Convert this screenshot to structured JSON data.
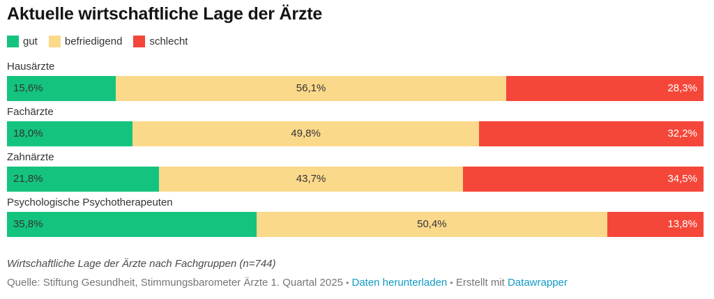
{
  "title": "Aktuelle wirtschaftliche Lage der Ärzte",
  "colors": {
    "good": "#14c47e",
    "satisfactory": "#fbd98b",
    "bad": "#f4473a",
    "link": "#0e9bc4",
    "text_dark": "#333333",
    "text_gray": "#757575"
  },
  "chart_data": {
    "type": "bar",
    "stacked": true,
    "orientation": "horizontal",
    "unit": "%",
    "value_range": [
      0,
      100
    ],
    "grid": false,
    "legend_position": "top",
    "title": "Aktuelle wirtschaftliche Lage der Ärzte",
    "categories": [
      "Hausärzte",
      "Fachärzte",
      "Zahnärzte",
      "Psychologische Psychotherapeuten"
    ],
    "series": [
      {
        "name": "gut",
        "color": "#14c47e",
        "label_color": "#333333",
        "label_align": "left",
        "values": [
          15.6,
          18.0,
          21.8,
          35.8
        ]
      },
      {
        "name": "befriedigend",
        "color": "#fbd98b",
        "label_color": "#333333",
        "label_align": "center",
        "values": [
          56.1,
          49.8,
          43.7,
          50.4
        ]
      },
      {
        "name": "schlecht",
        "color": "#f4473a",
        "label_color": "#ffffff",
        "label_align": "right",
        "values": [
          28.3,
          32.2,
          34.5,
          13.8
        ]
      }
    ],
    "value_labels": [
      [
        "15,6%",
        "56,1%",
        "28,3%"
      ],
      [
        "18,0%",
        "49,8%",
        "32,2%"
      ],
      [
        "21,8%",
        "43,7%",
        "34,5%"
      ],
      [
        "35,8%",
        "50,4%",
        "13,8%"
      ]
    ]
  },
  "footer": {
    "note": "Wirtschaftliche Lage der Ärzte nach Fachgruppen (n=744)",
    "source_text": "Quelle: Stiftung Gesundheit, Stimmungsbarometer Ärzte 1. Quartal 2025",
    "separator": "•",
    "download_link": "Daten herunterladen",
    "created_with_prefix": "Erstellt mit",
    "datawrapper_link": "Datawrapper"
  }
}
